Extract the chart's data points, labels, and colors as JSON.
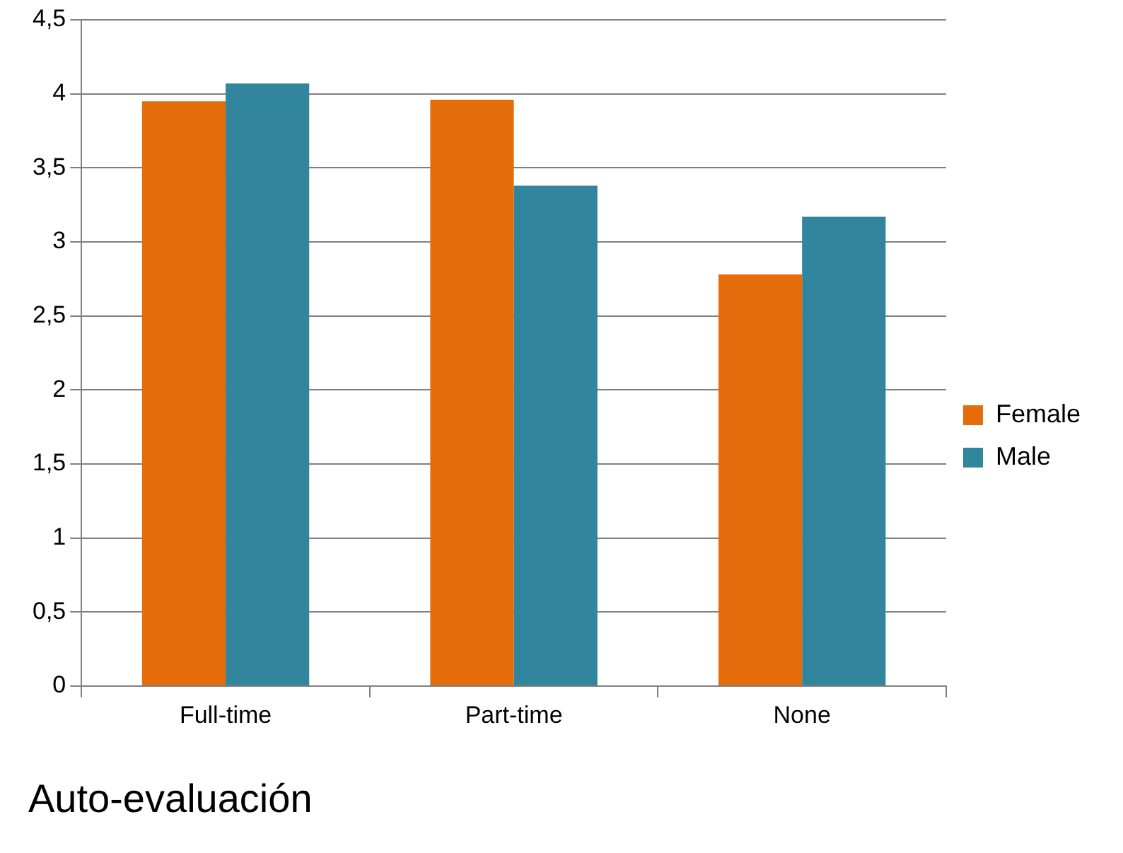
{
  "chart_data": {
    "type": "bar",
    "title": "Auto-evaluación",
    "categories": [
      "Full-time",
      "Part-time",
      "None"
    ],
    "series": [
      {
        "name": "Female",
        "color": "#e46c0a",
        "values": [
          3.95,
          3.96,
          2.78
        ]
      },
      {
        "name": "Male",
        "color": "#31859c",
        "values": [
          4.07,
          3.38,
          3.17
        ]
      }
    ],
    "ylim": [
      0,
      4.5
    ],
    "yticks": [
      0,
      {
        "value": 0.5,
        "label": "0,5"
      },
      1,
      {
        "value": 1.5,
        "label": "1,5"
      },
      2,
      {
        "value": 2.5,
        "label": "2,5"
      },
      3,
      {
        "value": 3.5,
        "label": "3,5"
      },
      4,
      {
        "value": 4.5,
        "label": "4,5"
      }
    ],
    "grid": "y",
    "legend": "right"
  }
}
